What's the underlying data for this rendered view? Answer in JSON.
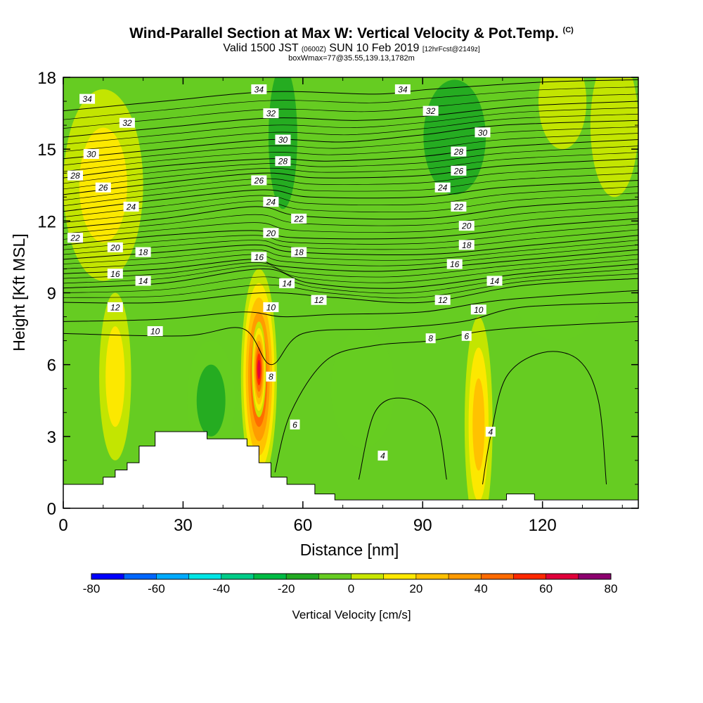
{
  "header": {
    "title": "Wind-Parallel Section at Max W: Vertical Velocity & Pot.Temp.",
    "copyright": "(C)",
    "subtitle_a": "Valid 1500 JST",
    "subtitle_b": "(0600Z)",
    "subtitle_c": "SUN 10 Feb 2019",
    "subtitle_d": "[12hrFcst@2149z]",
    "subtitle_e": "boxWmax=77@35.55,139.13,1782m"
  },
  "chart_data": {
    "type": "heatmap",
    "xlabel": "Distance [nm]",
    "ylabel": "Height [Kft MSL]",
    "xlim": [
      0,
      144
    ],
    "ylim": [
      0,
      18
    ],
    "x_ticks": [
      "0",
      "30",
      "60",
      "90",
      "120"
    ],
    "y_ticks": [
      "0",
      "3",
      "6",
      "9",
      "12",
      "15",
      "18"
    ],
    "colorbar": {
      "title": "Vertical Velocity [cm/s]",
      "min": -80,
      "max": 80,
      "step": 10,
      "tick_labels": [
        "-80",
        "-60",
        "-40",
        "-20",
        "0",
        "20",
        "40",
        "60",
        "80"
      ],
      "colors": [
        "#0000ff",
        "#0066ff",
        "#00aaff",
        "#00e5e5",
        "#00cc88",
        "#00bb44",
        "#22aa22",
        "#66cc22",
        "#c8e600",
        "#ffe800",
        "#ffc000",
        "#ff9a00",
        "#ff6a00",
        "#ff2800",
        "#e0003a",
        "#8c006e"
      ]
    },
    "terrain_kft": [
      [
        0,
        1
      ],
      [
        10,
        1
      ],
      [
        10,
        1.3
      ],
      [
        13,
        1.3
      ],
      [
        13,
        1.6
      ],
      [
        16,
        1.6
      ],
      [
        16,
        1.9
      ],
      [
        19,
        1.9
      ],
      [
        19,
        2.6
      ],
      [
        23,
        2.6
      ],
      [
        23,
        3.2
      ],
      [
        36,
        3.2
      ],
      [
        36,
        2.9
      ],
      [
        46,
        2.9
      ],
      [
        46,
        2.6
      ],
      [
        49,
        2.6
      ],
      [
        49,
        1.9
      ],
      [
        52,
        1.9
      ],
      [
        52,
        1.3
      ],
      [
        56,
        1.3
      ],
      [
        56,
        1
      ],
      [
        63,
        1
      ],
      [
        63,
        0.6
      ],
      [
        68,
        0.6
      ],
      [
        68,
        0.35
      ],
      [
        111,
        0.35
      ],
      [
        111,
        0.6
      ],
      [
        118,
        0.6
      ],
      [
        118,
        0.35
      ],
      [
        144,
        0.35
      ]
    ],
    "w_features": [
      {
        "x": 49,
        "y": 5.5,
        "rx": 4.5,
        "ry": 4.5,
        "value": 77
      },
      {
        "x": 49,
        "y": 5.8,
        "rx": 1.8,
        "ry": 2.0,
        "value": 77
      },
      {
        "x": 104,
        "y": 3.5,
        "rx": 3.5,
        "ry": 4.5,
        "value": 35
      },
      {
        "x": 13,
        "y": 5.5,
        "rx": 4,
        "ry": 3.5,
        "value": 25
      },
      {
        "x": 55,
        "y": 15.5,
        "rx": 6,
        "ry": 5,
        "value": -25
      },
      {
        "x": 98,
        "y": 15.5,
        "rx": 13,
        "ry": 4,
        "value": -22
      },
      {
        "x": 124,
        "y": 9.5,
        "rx": 12,
        "ry": 2.5,
        "value": -15
      },
      {
        "x": 37,
        "y": 4.5,
        "rx": 6,
        "ry": 2.5,
        "value": -20
      },
      {
        "x": 75,
        "y": 5,
        "rx": 8,
        "ry": 2.5,
        "value": -10
      },
      {
        "x": 10,
        "y": 13.5,
        "rx": 10,
        "ry": 4,
        "value": 20
      },
      {
        "x": 138,
        "y": 16,
        "rx": 6,
        "ry": 3,
        "value": 18
      },
      {
        "x": 125,
        "y": 17,
        "rx": 6,
        "ry": 2,
        "value": 18
      }
    ],
    "contours": [
      {
        "label": "4",
        "points": [
          [
            74,
            1.2
          ],
          [
            78,
            4
          ],
          [
            85,
            4.6
          ],
          [
            93,
            3.8
          ],
          [
            96,
            1.2
          ]
        ],
        "label_at": [
          80,
          2.2
        ]
      },
      {
        "label": "4",
        "points": [
          [
            105,
            1
          ],
          [
            107,
            3
          ],
          [
            111,
            5.5
          ],
          [
            120,
            6.5
          ],
          [
            129,
            6.2
          ],
          [
            134,
            4.5
          ],
          [
            136,
            1
          ]
        ],
        "label_at": [
          107,
          3.2
        ]
      },
      {
        "label": "6",
        "points": [
          [
            53,
            1.5
          ],
          [
            57,
            4
          ],
          [
            66,
            6.2
          ],
          [
            78,
            6.8
          ],
          [
            92,
            7
          ],
          [
            105,
            7.4
          ],
          [
            120,
            7.6
          ],
          [
            144,
            7.8
          ]
        ],
        "label_at": [
          58,
          3.5
        ]
      },
      {
        "label": "8",
        "points": [
          [
            0,
            7.3
          ],
          [
            30,
            7.2
          ],
          [
            45,
            7.5
          ],
          [
            52,
            6
          ],
          [
            60,
            7.3
          ],
          [
            80,
            7.5
          ],
          [
            100,
            7.8
          ],
          [
            115,
            8.4
          ],
          [
            144,
            8.6
          ]
        ],
        "label_at": [
          52,
          5.5
        ]
      },
      {
        "label": "10",
        "points": [
          [
            0,
            7.8
          ],
          [
            25,
            7.9
          ],
          [
            45,
            8.2
          ],
          [
            55,
            8
          ],
          [
            68,
            8.1
          ],
          [
            90,
            8.2
          ],
          [
            110,
            8.7
          ],
          [
            144,
            9.1
          ]
        ],
        "label_at": [
          23,
          7.4
        ]
      },
      {
        "label": "12",
        "points": [
          [
            0,
            8.6
          ],
          [
            25,
            8.6
          ],
          [
            50,
            9
          ],
          [
            68,
            8.8
          ],
          [
            90,
            8.6
          ],
          [
            115,
            9.3
          ],
          [
            144,
            9.6
          ]
        ],
        "label_at": [
          13,
          8.4
        ]
      },
      {
        "label": "14",
        "points": [
          [
            0,
            9.2
          ],
          [
            25,
            9.4
          ],
          [
            50,
            10
          ],
          [
            62,
            9.4
          ],
          [
            85,
            9.2
          ],
          [
            115,
            9.8
          ],
          [
            144,
            10.2
          ]
        ],
        "label_at": [
          20,
          9.5
        ]
      },
      {
        "label": "16",
        "points": [
          [
            0,
            9.8
          ],
          [
            25,
            10
          ],
          [
            47,
            10.4
          ],
          [
            55,
            10.1
          ],
          [
            80,
            9.9
          ],
          [
            110,
            10.3
          ],
          [
            144,
            10.8
          ]
        ],
        "label_at": [
          13,
          9.8
        ]
      },
      {
        "label": "18",
        "points": [
          [
            0,
            10.4
          ],
          [
            25,
            10.7
          ],
          [
            48,
            11
          ],
          [
            58,
            10.7
          ],
          [
            90,
            10.6
          ],
          [
            118,
            11
          ],
          [
            144,
            11.4
          ]
        ],
        "label_at": [
          20,
          10.7
        ]
      },
      {
        "label": "20",
        "points": [
          [
            0,
            11
          ],
          [
            25,
            11.4
          ],
          [
            48,
            11.6
          ],
          [
            58,
            11.3
          ],
          [
            90,
            11.3
          ],
          [
            120,
            11.8
          ],
          [
            144,
            12.1
          ]
        ],
        "label_at": [
          13,
          10.9
        ]
      },
      {
        "label": "22",
        "points": [
          [
            0,
            11.7
          ],
          [
            25,
            12.1
          ],
          [
            48,
            12.6
          ],
          [
            60,
            12.2
          ],
          [
            90,
            12.1
          ],
          [
            115,
            12.6
          ],
          [
            144,
            12.9
          ]
        ],
        "label_at": [
          3,
          11.3
        ]
      },
      {
        "label": "24",
        "points": [
          [
            0,
            12.4
          ],
          [
            25,
            12.9
          ],
          [
            50,
            13.3
          ],
          [
            62,
            13
          ],
          [
            90,
            13
          ],
          [
            110,
            13.4
          ],
          [
            144,
            13.7
          ]
        ],
        "label_at": [
          17,
          12.6
        ]
      },
      {
        "label": "26",
        "points": [
          [
            0,
            13.1
          ],
          [
            25,
            13.6
          ],
          [
            50,
            14
          ],
          [
            64,
            13.8
          ],
          [
            90,
            13.9
          ],
          [
            110,
            14.3
          ],
          [
            144,
            14.6
          ]
        ],
        "label_at": [
          10,
          13.4
        ]
      },
      {
        "label": "28",
        "points": [
          [
            0,
            13.8
          ],
          [
            25,
            14.3
          ],
          [
            52,
            14.6
          ],
          [
            66,
            14.5
          ],
          [
            90,
            14.7
          ],
          [
            110,
            15.1
          ],
          [
            144,
            15.4
          ]
        ],
        "label_at": [
          3,
          13.9
        ]
      },
      {
        "label": "30",
        "points": [
          [
            0,
            14.6
          ],
          [
            25,
            15
          ],
          [
            52,
            15.4
          ],
          [
            70,
            15.3
          ],
          [
            90,
            15.6
          ],
          [
            110,
            16
          ],
          [
            144,
            16.2
          ]
        ],
        "label_at": [
          7,
          14.8
        ]
      },
      {
        "label": "32",
        "points": [
          [
            0,
            15.5
          ],
          [
            25,
            15.9
          ],
          [
            52,
            16.3
          ],
          [
            74,
            16.2
          ],
          [
            92,
            16.4
          ],
          [
            115,
            16.8
          ],
          [
            144,
            17
          ]
        ],
        "label_at": [
          16,
          16.1
        ]
      },
      {
        "label": "34",
        "points": [
          [
            0,
            16.6
          ],
          [
            25,
            17
          ],
          [
            52,
            17.4
          ],
          [
            78,
            17.3
          ],
          [
            92,
            17.5
          ],
          [
            120,
            17.8
          ],
          [
            144,
            17.9
          ]
        ],
        "label_at": [
          6,
          17.1
        ]
      }
    ],
    "extra_labels": [
      {
        "label": "34",
        "at": [
          49,
          17.5
        ]
      },
      {
        "label": "32",
        "at": [
          52,
          16.5
        ]
      },
      {
        "label": "30",
        "at": [
          55,
          15.4
        ]
      },
      {
        "label": "28",
        "at": [
          55,
          14.5
        ]
      },
      {
        "label": "26",
        "at": [
          49,
          13.7
        ]
      },
      {
        "label": "24",
        "at": [
          52,
          12.8
        ]
      },
      {
        "label": "22",
        "at": [
          59,
          12.1
        ]
      },
      {
        "label": "20",
        "at": [
          52,
          11.5
        ]
      },
      {
        "label": "18",
        "at": [
          59,
          10.7
        ]
      },
      {
        "label": "16",
        "at": [
          49,
          10.5
        ]
      },
      {
        "label": "14",
        "at": [
          56,
          9.4
        ]
      },
      {
        "label": "12",
        "at": [
          64,
          8.7
        ]
      },
      {
        "label": "10",
        "at": [
          52,
          8.4
        ]
      },
      {
        "label": "34",
        "at": [
          85,
          17.5
        ]
      },
      {
        "label": "32",
        "at": [
          92,
          16.6
        ]
      },
      {
        "label": "30",
        "at": [
          105,
          15.7
        ]
      },
      {
        "label": "28",
        "at": [
          99,
          14.9
        ]
      },
      {
        "label": "26",
        "at": [
          99,
          14.1
        ]
      },
      {
        "label": "24",
        "at": [
          95,
          13.4
        ]
      },
      {
        "label": "22",
        "at": [
          99,
          12.6
        ]
      },
      {
        "label": "20",
        "at": [
          101,
          11.8
        ]
      },
      {
        "label": "18",
        "at": [
          101,
          11
        ]
      },
      {
        "label": "16",
        "at": [
          98,
          10.2
        ]
      },
      {
        "label": "14",
        "at": [
          108,
          9.5
        ]
      },
      {
        "label": "12",
        "at": [
          95,
          8.7
        ]
      },
      {
        "label": "10",
        "at": [
          104,
          8.3
        ]
      },
      {
        "label": "8",
        "at": [
          92,
          7.1
        ]
      },
      {
        "label": "6",
        "at": [
          101,
          7.2
        ]
      }
    ]
  }
}
